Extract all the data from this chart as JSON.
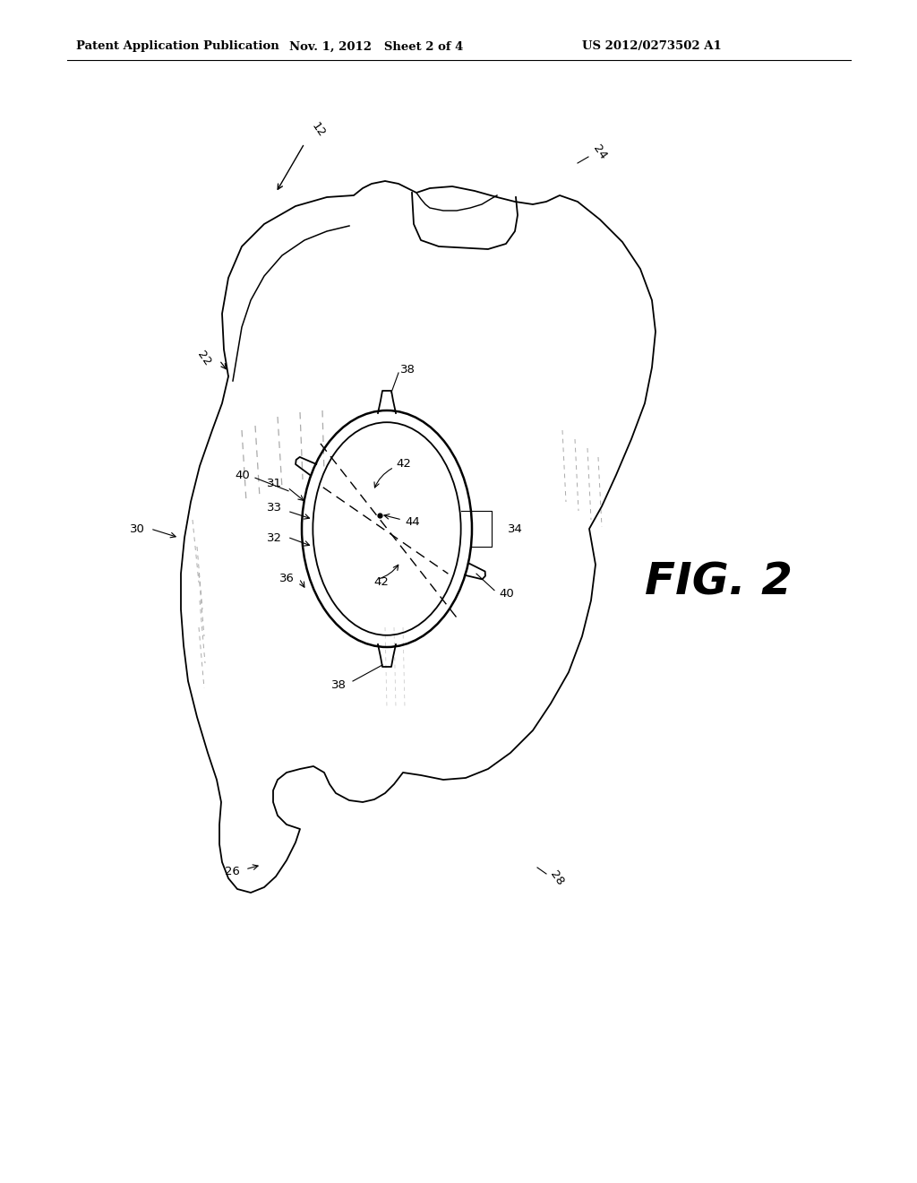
{
  "title_left": "Patent Application Publication",
  "title_mid": "Nov. 1, 2012   Sheet 2 of 4",
  "title_right": "US 2012/0273502 A1",
  "fig_label": "FIG. 2",
  "background_color": "#ffffff",
  "line_color": "#000000"
}
